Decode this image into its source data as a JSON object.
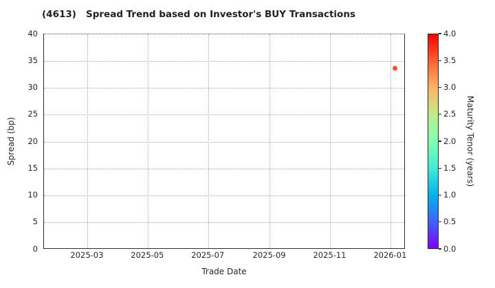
{
  "title": "(4613)   Spread Trend based on Investor's BUY Transactions",
  "chart_data": {
    "type": "scatter",
    "title": "(4613)   Spread Trend based on Investor's BUY Transactions",
    "xlabel": "Trade Date",
    "ylabel": "Spread (bp)",
    "ylim": [
      0,
      40
    ],
    "y_ticks": [
      0,
      5,
      10,
      15,
      20,
      25,
      30,
      35,
      40
    ],
    "x_ticks": [
      {
        "label": "2025-03",
        "date": "2025-03-01"
      },
      {
        "label": "2025-05",
        "date": "2025-05-01"
      },
      {
        "label": "2025-07",
        "date": "2025-07-01"
      },
      {
        "label": "2025-09",
        "date": "2025-09-01"
      },
      {
        "label": "2025-11",
        "date": "2025-11-01"
      },
      {
        "label": "2026-01",
        "date": "2026-01-01"
      }
    ],
    "grid": "dotted",
    "legend": "none",
    "points": [
      {
        "trade_date": "2026-01-06",
        "spread_bp": 33.6,
        "maturity_tenor_years": 3.6
      }
    ],
    "colorbar": {
      "label": "Maturity Tenor (years)",
      "range": [
        0.0,
        4.0
      ],
      "ticks": [
        "0.0",
        "0.5",
        "1.0",
        "1.5",
        "2.0",
        "2.5",
        "3.0",
        "3.5",
        "4.0"
      ],
      "colormap": "rainbow",
      "stops": [
        {
          "value": 0.0,
          "color": "#8000ff"
        },
        {
          "value": 0.5,
          "color": "#4062fa"
        },
        {
          "value": 1.0,
          "color": "#00b4ec"
        },
        {
          "value": 1.5,
          "color": "#40ecd4"
        },
        {
          "value": 2.0,
          "color": "#80ffb4"
        },
        {
          "value": 2.5,
          "color": "#bfec8e"
        },
        {
          "value": 3.0,
          "color": "#ffb462"
        },
        {
          "value": 3.5,
          "color": "#ff6232"
        },
        {
          "value": 4.0,
          "color": "#ff0000"
        }
      ]
    }
  }
}
